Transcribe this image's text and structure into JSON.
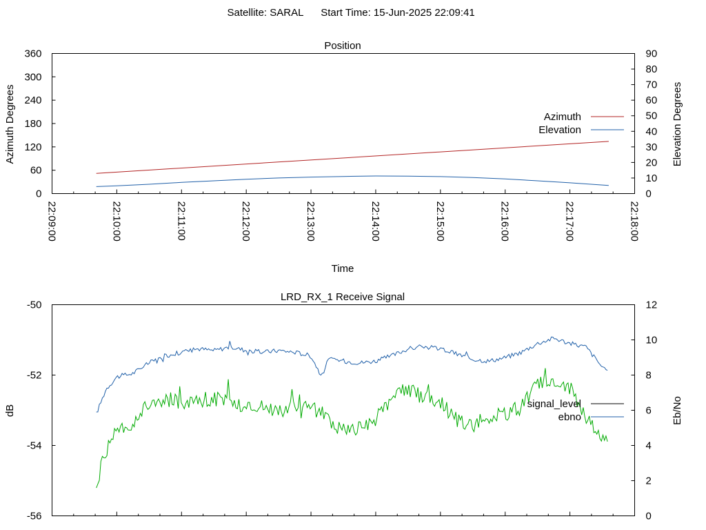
{
  "header": {
    "satellite_label": "Satellite: SARAL",
    "start_time_label": "Start Time: 15-Jun-2025 22:09:41"
  },
  "chart_data": [
    {
      "type": "line",
      "title": "Position",
      "xlabel": "Time",
      "ylabel": "Azimuth Degrees",
      "y2label": "Elevation Degrees",
      "xlim": [
        "22:09:00",
        "22:18:00"
      ],
      "ylim": [
        0,
        360
      ],
      "y2lim": [
        0,
        90
      ],
      "x_ticks": [
        "22:09:00",
        "22:10:00",
        "22:11:00",
        "22:12:00",
        "22:13:00",
        "22:14:00",
        "22:15:00",
        "22:16:00",
        "22:17:00",
        "22:18:00"
      ],
      "y_ticks": [
        "0",
        "60",
        "120",
        "180",
        "240",
        "300",
        "360"
      ],
      "y2_ticks": [
        "0",
        "10",
        "20",
        "30",
        "40",
        "50",
        "60",
        "70",
        "80",
        "90"
      ],
      "legend_position": "right",
      "series": [
        {
          "name": "Azimuth",
          "axis": "left",
          "color": "#b22222",
          "x": [
            "22:09:41",
            "22:17:36"
          ],
          "values": [
            52,
            134
          ]
        },
        {
          "name": "Elevation",
          "axis": "right",
          "color": "#1f5fa8",
          "x": [
            "22:09:41",
            "22:10:00",
            "22:10:30",
            "22:11:00",
            "22:11:30",
            "22:12:00",
            "22:12:30",
            "22:13:00",
            "22:13:30",
            "22:14:00",
            "22:14:30",
            "22:15:00",
            "22:15:30",
            "22:16:00",
            "22:16:30",
            "22:17:00",
            "22:17:36"
          ],
          "values": [
            4.5,
            5.0,
            6.0,
            7.2,
            8.2,
            9.2,
            10.0,
            10.6,
            11.0,
            11.3,
            11.2,
            10.9,
            10.3,
            9.4,
            8.2,
            6.9,
            5.2
          ]
        }
      ]
    },
    {
      "type": "line",
      "title": "LRD_RX_1 Receive Signal",
      "ylabel": "dB",
      "y2label": "Eb/No",
      "ylim": [
        -56,
        -50
      ],
      "y2lim": [
        0,
        12
      ],
      "y_ticks": [
        "-56",
        "-54",
        "-52",
        "-50"
      ],
      "y2_ticks": [
        "0",
        "2",
        "4",
        "6",
        "8",
        "10",
        "12"
      ],
      "legend_position": "right",
      "legend": [
        {
          "name": "signal_level",
          "color": "#000000"
        },
        {
          "name": "ebno",
          "color": "#1f5fa8"
        }
      ],
      "series": [
        {
          "name": "signal_level",
          "axis": "right",
          "color": "#00aa00",
          "x": [
            "22:09:41",
            "22:09:50",
            "22:10:00",
            "22:10:15",
            "22:10:30",
            "22:10:45",
            "22:11:00",
            "22:11:15",
            "22:11:30",
            "22:11:45",
            "22:12:00",
            "22:12:15",
            "22:12:30",
            "22:12:45",
            "22:13:00",
            "22:13:15",
            "22:13:30",
            "22:13:45",
            "22:14:00",
            "22:14:15",
            "22:14:30",
            "22:14:45",
            "22:15:00",
            "22:15:15",
            "22:15:30",
            "22:15:45",
            "22:16:00",
            "22:16:15",
            "22:16:30",
            "22:16:45",
            "22:17:00",
            "22:17:15",
            "22:17:36"
          ],
          "values": [
            2.0,
            3.5,
            4.8,
            5.2,
            6.4,
            6.6,
            6.5,
            6.6,
            6.7,
            6.5,
            6.2,
            6.3,
            6.0,
            6.2,
            6.2,
            5.6,
            4.8,
            4.9,
            5.5,
            6.8,
            7.2,
            6.7,
            6.4,
            5.5,
            5.2,
            5.6,
            5.8,
            6.2,
            7.6,
            7.5,
            7.3,
            5.7,
            4.0
          ]
        },
        {
          "name": "ebno",
          "axis": "right",
          "color": "#1f5fa8",
          "x": [
            "22:09:41",
            "22:09:50",
            "22:10:00",
            "22:10:15",
            "22:10:30",
            "22:10:45",
            "22:11:00",
            "22:11:15",
            "22:11:30",
            "22:11:45",
            "22:12:00",
            "22:12:15",
            "22:12:30",
            "22:12:45",
            "22:13:00",
            "22:13:10",
            "22:13:15",
            "22:13:20",
            "22:13:30",
            "22:13:45",
            "22:14:00",
            "22:14:15",
            "22:14:30",
            "22:14:45",
            "22:15:00",
            "22:15:15",
            "22:15:30",
            "22:15:45",
            "22:16:00",
            "22:16:15",
            "22:16:30",
            "22:16:45",
            "22:17:00",
            "22:17:15",
            "22:17:36"
          ],
          "values": [
            5.8,
            7.2,
            7.9,
            8.1,
            8.7,
            9.1,
            9.3,
            9.5,
            9.4,
            9.6,
            9.4,
            9.3,
            9.4,
            9.3,
            9.1,
            7.9,
            8.8,
            8.9,
            8.8,
            8.7,
            8.8,
            9.1,
            9.5,
            9.6,
            9.5,
            9.2,
            8.9,
            8.8,
            9.0,
            9.3,
            9.8,
            10.1,
            9.8,
            9.6,
            8.0
          ]
        }
      ]
    }
  ]
}
